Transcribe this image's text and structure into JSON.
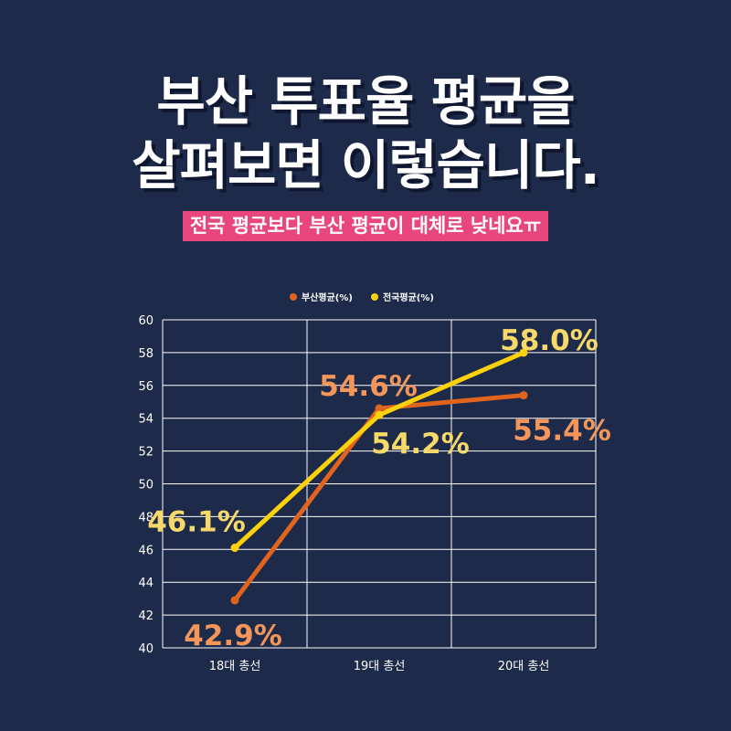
{
  "header": {
    "title_line1": "부산 투표율 평균을",
    "title_line2": "살펴보면 이렇습니다.",
    "subtitle": "전국 평균보다 부산 평균이 대체로 낮네요ㅠ"
  },
  "chart_data": {
    "type": "line",
    "categories": [
      "18대 총선",
      "19대 총선",
      "20대 총선"
    ],
    "series": [
      {
        "name": "부산평균(%)",
        "values": [
          42.9,
          54.6,
          55.4
        ],
        "color": "#e0641e",
        "label_color": "#f4965a",
        "labels": [
          "42.9%",
          "54.6%",
          "55.4%"
        ]
      },
      {
        "name": "전국평균(%)",
        "values": [
          46.1,
          54.2,
          58.0
        ],
        "color": "#ffd10a",
        "label_color": "#f7d96a",
        "labels": [
          "46.1%",
          "54.2%",
          "58.0%"
        ]
      }
    ],
    "ylim": [
      40,
      60
    ],
    "yticks": [
      40,
      42,
      44,
      46,
      48,
      50,
      52,
      54,
      56,
      58,
      60
    ],
    "grid": true,
    "legend_position": "top-center"
  }
}
